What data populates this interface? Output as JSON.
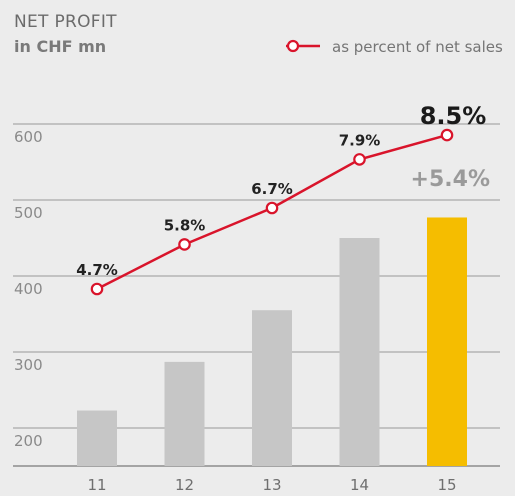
{
  "title": "NET PROFIT",
  "subtitle": "in CHF mn",
  "legend_label": "as percent of net sales",
  "growth_label": "+5.4%",
  "colors": {
    "background": "#ececec",
    "bar": "#c6c6c6",
    "bar_highlight": "#f5bd00",
    "line": "#d9142b",
    "grid": "#a9a9a9",
    "axis": "#8c8c8c"
  },
  "chart_data": {
    "type": "bar",
    "title": "NET PROFIT",
    "subtitle": "in CHF mn",
    "categories": [
      "11",
      "12",
      "13",
      "14",
      "15"
    ],
    "ylim": [
      150,
      630
    ],
    "yticks": [
      200,
      300,
      400,
      500,
      600
    ],
    "grid": true,
    "legend_placement": "top-right",
    "series": [
      {
        "type": "bar",
        "values": [
          223,
          287,
          355,
          450,
          477
        ]
      },
      {
        "type": "line",
        "name": "as percent of net sales",
        "values": [
          4.7,
          5.8,
          6.7,
          7.9,
          8.5
        ],
        "labels": [
          "4.7%",
          "5.8%",
          "6.7%",
          "7.9%",
          "8.5%"
        ]
      }
    ]
  }
}
